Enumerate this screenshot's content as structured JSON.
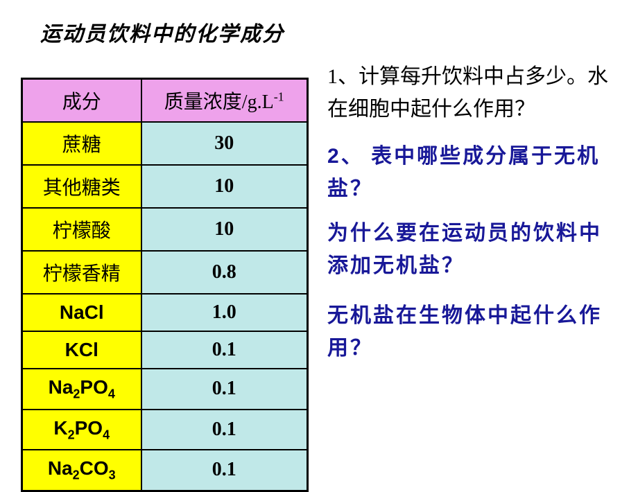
{
  "title": "运动员饮料中的化学成分",
  "table": {
    "columns": [
      "成分",
      "质量浓度/g.L"
    ],
    "header_bg": "#eea2eb",
    "col1_bg": "#ffff00",
    "col2_bg": "#c0e8e8",
    "border_color": "#000000",
    "col1_width": 172,
    "col2_width": 240,
    "font_size": 28,
    "rows": [
      {
        "name": "蔗糖",
        "value": "30",
        "formula": false
      },
      {
        "name": "其他糖类",
        "value": "10",
        "formula": false
      },
      {
        "name": "柠檬酸",
        "value": "10",
        "formula": false
      },
      {
        "name": "柠檬香精",
        "value": "0.8",
        "formula": false
      },
      {
        "name": "NaCl",
        "value": "1.0",
        "formula": true
      },
      {
        "name": "KCl",
        "value": "0.1",
        "formula": true
      },
      {
        "name": "Na2PO4",
        "value": "0.1",
        "formula": true,
        "sub": [
          [
            "Na",
            "2"
          ],
          [
            "PO",
            "4"
          ]
        ]
      },
      {
        "name": "K2PO4",
        "value": "0.1",
        "formula": true,
        "sub": [
          [
            "K",
            "2"
          ],
          [
            "PO",
            "4"
          ]
        ]
      },
      {
        "name": "Na2CO3",
        "value": "0.1",
        "formula": true,
        "sub": [
          [
            "Na",
            "2"
          ],
          [
            "CO",
            "3"
          ]
        ]
      }
    ]
  },
  "questions": {
    "q1": "1、计算每升饮料中占多少。水在细胞中起什么作用？",
    "q2_num": "2",
    "q2_text": "、 表中哪些成分属于无机盐？",
    "q3": "为什么要在运动员的饮料中添加无机盐？",
    "q4": "无机盐在生物体中起什么作用？"
  },
  "colors": {
    "background": "#ffffff",
    "title_color": "#000000",
    "q1_color": "#000000",
    "q_emphasis_color": "#181898"
  }
}
